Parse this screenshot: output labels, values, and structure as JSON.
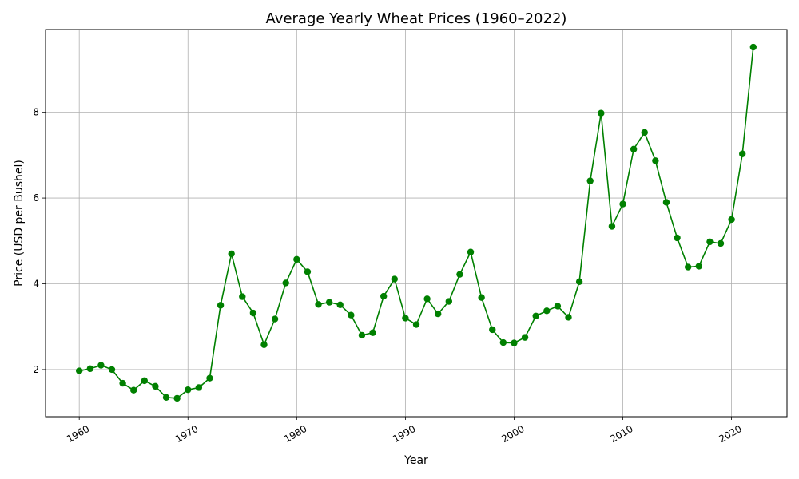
{
  "chart_data": {
    "type": "line",
    "title": "Average Yearly Wheat Prices (1960–2022)",
    "xlabel": "Year",
    "ylabel": "Price (USD per Bushel)",
    "xlim": [
      1956.9,
      2025.1
    ],
    "ylim": [
      0.9,
      9.93
    ],
    "x_ticks": [
      1960,
      1970,
      1980,
      1990,
      2000,
      2010,
      2020
    ],
    "x_tick_labels": [
      "1960",
      "1970",
      "1980",
      "1990",
      "2000",
      "2010",
      "2020"
    ],
    "y_ticks": [
      2,
      4,
      6,
      8
    ],
    "y_tick_labels": [
      "2",
      "4",
      "6",
      "8"
    ],
    "grid": true,
    "color": "#008000",
    "marker": "circle",
    "series": [
      {
        "x": [
          1960,
          1961,
          1962,
          1963,
          1964,
          1965,
          1966,
          1967,
          1968,
          1969,
          1970,
          1971,
          1972,
          1973,
          1974,
          1975,
          1976,
          1977,
          1978,
          1979,
          1980,
          1981,
          1982,
          1983,
          1984,
          1985,
          1986,
          1987,
          1988,
          1989,
          1990,
          1991,
          1992,
          1993,
          1994,
          1995,
          1996,
          1997,
          1998,
          1999,
          2000,
          2001,
          2002,
          2003,
          2004,
          2005,
          2006,
          2007,
          2008,
          2009,
          2010,
          2011,
          2012,
          2013,
          2014,
          2015,
          2016,
          2017,
          2018,
          2019,
          2020,
          2021,
          2022
        ],
        "values": [
          1.97,
          2.02,
          2.1,
          2.0,
          1.68,
          1.52,
          1.74,
          1.61,
          1.35,
          1.33,
          1.53,
          1.58,
          1.8,
          3.5,
          4.7,
          3.7,
          3.32,
          2.58,
          3.18,
          4.02,
          4.57,
          4.28,
          3.52,
          3.57,
          3.51,
          3.27,
          2.8,
          2.86,
          3.71,
          4.11,
          3.2,
          3.05,
          3.65,
          3.3,
          3.59,
          4.22,
          4.74,
          3.68,
          2.93,
          2.63,
          2.62,
          2.75,
          3.25,
          3.37,
          3.48,
          3.22,
          4.05,
          6.4,
          7.98,
          5.34,
          5.86,
          7.14,
          7.53,
          6.87,
          5.9,
          5.07,
          4.39,
          4.41,
          4.98,
          4.94,
          5.5,
          7.03,
          9.52
        ]
      }
    ]
  }
}
